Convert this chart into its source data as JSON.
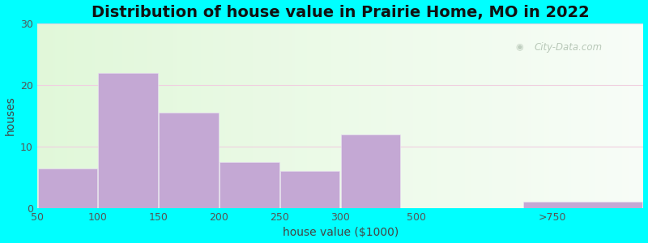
{
  "title": "Distribution of house value in Prairie Home, MO in 2022",
  "xlabel": "house value ($1000)",
  "ylabel": "houses",
  "bar_heights": [
    6.5,
    22,
    15.5,
    7.5,
    6,
    12,
    0,
    1
  ],
  "bar_color": "#C4A8D4",
  "bar_edgecolor": "#e8e0f0",
  "ylim": [
    0,
    30
  ],
  "yticks": [
    0,
    10,
    20,
    30
  ],
  "xtick_labels": [
    "50",
    "100",
    "150",
    "200",
    "250",
    "300",
    "500",
    ">750"
  ],
  "background_outer": "#00FFFF",
  "grid_color": "#e8d8e8",
  "title_fontsize": 14,
  "axis_fontsize": 10,
  "tick_fontsize": 9,
  "watermark": "City-Data.com"
}
